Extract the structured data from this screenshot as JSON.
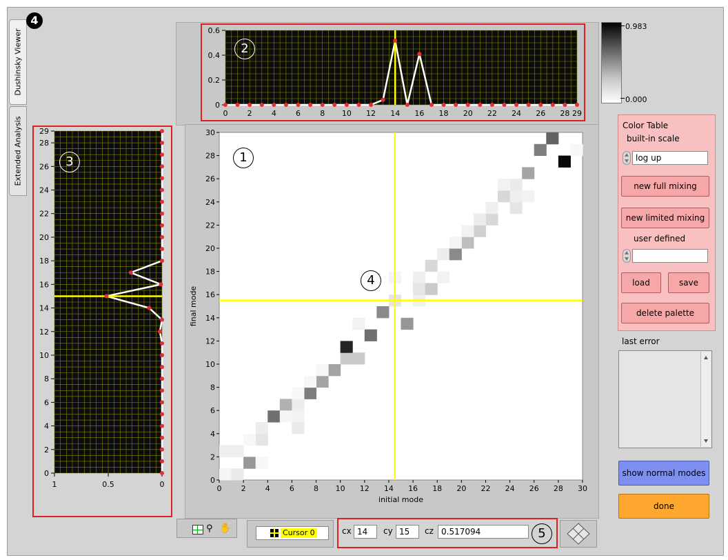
{
  "tabs": [
    {
      "label": "Dushinsky Viewer",
      "active": true
    },
    {
      "label": "Extended Analysis",
      "active": false
    }
  ],
  "badge": "4",
  "callouts": {
    "main": "1",
    "top": "2",
    "left": "3",
    "center": "4",
    "cursor": "5"
  },
  "main_plot": {
    "xlabel": "initial mode",
    "ylabel": "final mode",
    "xticks": [
      "0",
      "2",
      "4",
      "6",
      "8",
      "10",
      "12",
      "14",
      "16",
      "18",
      "20",
      "22",
      "24",
      "26",
      "28",
      "30"
    ],
    "yticks": [
      "0",
      "2",
      "4",
      "6",
      "8",
      "10",
      "12",
      "14",
      "16",
      "18",
      "20",
      "22",
      "24",
      "26",
      "28",
      "30"
    ],
    "cursor": {
      "x": 14.5,
      "y": 15.5,
      "color": "#ffff00"
    }
  },
  "top_plot": {
    "yticks": [
      "0",
      "0.2",
      "0.4",
      "0.6"
    ],
    "xticks": [
      "0",
      "2",
      "4",
      "6",
      "8",
      "10",
      "12",
      "14",
      "16",
      "18",
      "20",
      "22",
      "24",
      "26",
      "28",
      "29"
    ],
    "cursor_x": 14
  },
  "left_plot": {
    "yticks": [
      "0",
      "2",
      "4",
      "6",
      "8",
      "10",
      "12",
      "14",
      "16",
      "18",
      "20",
      "22",
      "24",
      "26",
      "28",
      "29"
    ],
    "xticks": [
      "1",
      "0.5",
      "0"
    ],
    "cursor_y": 15
  },
  "colorbar": {
    "max_label": "0.983",
    "min_label": "0.000"
  },
  "color_table": {
    "title": "Color Table",
    "builtin_label": "built-in scale",
    "scale_value": "log up",
    "new_full_mixing": "new full mixing",
    "new_limited_mixing": "new limited mixing",
    "user_defined_label": "user defined",
    "user_defined_value": "",
    "load": "load",
    "save": "save",
    "delete_palette": "delete palette"
  },
  "last_error": {
    "label": "last error",
    "value": ""
  },
  "buttons": {
    "show_normal_modes": "show normal modes",
    "done": "done"
  },
  "cursor_legend": {
    "name": "Cursor 0"
  },
  "cursor_readout": {
    "cx_label": "cx",
    "cx": "14",
    "cy_label": "cy",
    "cy": "15",
    "cz_label": "cz",
    "cz": "0.517094"
  },
  "colors": {
    "plot_bg": "#0c0c0c",
    "grid": "#8a8a00",
    "cursor": "#ffff00",
    "points": "#e53030",
    "panel_pink": "#f8c0c0",
    "blue_btn": "#7f8ff0",
    "orange_btn": "#ffa830"
  },
  "chart_data": [
    {
      "type": "heatmap",
      "xlabel": "initial mode",
      "ylabel": "final mode",
      "xlim": [
        0,
        30
      ],
      "ylim": [
        0,
        30
      ],
      "cells": [
        [
          0,
          0,
          0.04
        ],
        [
          1,
          0,
          0.08
        ],
        [
          0,
          2,
          0.06
        ],
        [
          1,
          2,
          0.06
        ],
        [
          2,
          1,
          0.4
        ],
        [
          3,
          1,
          0.03
        ],
        [
          3,
          3,
          0.1
        ],
        [
          3,
          4,
          0.07
        ],
        [
          2,
          3,
          0.03
        ],
        [
          4,
          5,
          0.55
        ],
        [
          5,
          6,
          0.3
        ],
        [
          6,
          6,
          0.07
        ],
        [
          6,
          5,
          0.05
        ],
        [
          5,
          5,
          0.04
        ],
        [
          6,
          4,
          0.08
        ],
        [
          7,
          7,
          0.5
        ],
        [
          6,
          7,
          0.03
        ],
        [
          8,
          8,
          0.35
        ],
        [
          7,
          8,
          0.03
        ],
        [
          9,
          9,
          0.35
        ],
        [
          8,
          9,
          0.03
        ],
        [
          10,
          10,
          0.2
        ],
        [
          10,
          11,
          0.85
        ],
        [
          11,
          10,
          0.2
        ],
        [
          12,
          12,
          0.55
        ],
        [
          11,
          13,
          0.05
        ],
        [
          13,
          14,
          0.45
        ],
        [
          14,
          15,
          0.1
        ],
        [
          14,
          17,
          0.04
        ],
        [
          15,
          13,
          0.4
        ],
        [
          16,
          15,
          0.06
        ],
        [
          16,
          17,
          0.06
        ],
        [
          16,
          16,
          0.1
        ],
        [
          17,
          16,
          0.2
        ],
        [
          17,
          18,
          0.15
        ],
        [
          18,
          17,
          0.05
        ],
        [
          18,
          19,
          0.07
        ],
        [
          19,
          19,
          0.45
        ],
        [
          20,
          20,
          0.25
        ],
        [
          21,
          21,
          0.18
        ],
        [
          22,
          22,
          0.15
        ],
        [
          21,
          22,
          0.07
        ],
        [
          23,
          24,
          0.15
        ],
        [
          24,
          23,
          0.1
        ],
        [
          24,
          24,
          0.06
        ],
        [
          24,
          25,
          0.08
        ],
        [
          25,
          24,
          0.05
        ],
        [
          23,
          25,
          0.05
        ],
        [
          22,
          23,
          0.06
        ],
        [
          25,
          26,
          0.35
        ],
        [
          26,
          28,
          0.5
        ],
        [
          27,
          29,
          0.6
        ],
        [
          28,
          27,
          0.95
        ],
        [
          29,
          28,
          0.03
        ],
        [
          20,
          21,
          0.05
        ],
        [
          19,
          20,
          0.04
        ]
      ],
      "value_range": [
        0.0,
        0.983
      ]
    },
    {
      "type": "line",
      "x": [
        0,
        1,
        2,
        3,
        4,
        5,
        6,
        7,
        8,
        9,
        10,
        11,
        12,
        13,
        14,
        15,
        16,
        17,
        18,
        19,
        20,
        21,
        22,
        23,
        24,
        25,
        26,
        27,
        28,
        29
      ],
      "y": [
        0,
        0,
        0,
        0,
        0,
        0,
        0,
        0,
        0,
        0,
        0,
        0,
        0,
        0.04,
        0.517,
        0,
        0.41,
        0,
        0,
        0,
        0,
        0,
        0,
        0,
        0,
        0,
        0,
        0,
        0,
        0
      ],
      "ylim": [
        0,
        0.6
      ],
      "xlim": [
        0,
        29
      ]
    },
    {
      "type": "line",
      "y": [
        0,
        1,
        2,
        3,
        4,
        5,
        6,
        7,
        8,
        9,
        10,
        11,
        12,
        13,
        14,
        15,
        16,
        17,
        18,
        19,
        20,
        21,
        22,
        23,
        24,
        25,
        26,
        27,
        28,
        29
      ],
      "x": [
        0,
        0,
        0,
        0,
        0,
        0,
        0,
        0,
        0,
        0,
        0,
        0,
        0.02,
        0,
        0.12,
        0.517,
        0.01,
        0.29,
        0,
        0,
        0,
        0,
        0,
        0,
        0,
        0,
        0,
        0,
        0,
        0
      ],
      "xlim": [
        1,
        0
      ],
      "ylim": [
        0,
        29
      ]
    }
  ]
}
